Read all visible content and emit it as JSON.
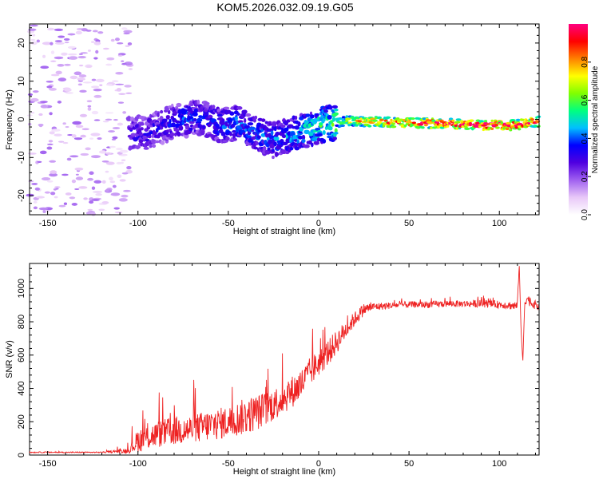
{
  "chart_data": [
    {
      "type": "heatmap",
      "title": "KOM5.2026.032.09.19.G05",
      "xlabel": "Height of straight line (km)",
      "ylabel": "Frequency (Hz)",
      "xlim": [
        -160,
        122
      ],
      "ylim": [
        -25,
        25
      ],
      "xticks": [
        -150,
        -100,
        -50,
        0,
        50,
        100
      ],
      "yticks": [
        -20,
        -10,
        0,
        10,
        20
      ],
      "colorbar": {
        "label": "Normalized spectral amplitude",
        "range": [
          0.0,
          1.0
        ],
        "ticks": [
          0.0,
          0.2,
          0.4,
          0.6,
          0.8
        ],
        "tick_labels": [
          "0.0",
          "0.2",
          "0.4",
          "0.6",
          "0.8"
        ],
        "colormap": [
          "#ffffff",
          "#e8c8f8",
          "#a060f0",
          "#5000e0",
          "#0000ff",
          "#00c0ff",
          "#00ff80",
          "#80ff00",
          "#ffff00",
          "#ff8000",
          "#ff0000",
          "#ff0080"
        ]
      },
      "ridge": {
        "x": [
          -105,
          -95,
          -85,
          -75,
          -65,
          -55,
          -45,
          -35,
          -25,
          -15,
          -5,
          5,
          15,
          30,
          50,
          70,
          90,
          110,
          122
        ],
        "freq": [
          -4,
          -3.5,
          -1.5,
          0,
          0.5,
          -1.5,
          -1,
          -3.5,
          -5.5,
          -4,
          -2.5,
          -1,
          -0.5,
          -0.5,
          -1,
          -1,
          -1.5,
          -1.5,
          -0.5
        ],
        "amplitude": [
          0.25,
          0.25,
          0.25,
          0.3,
          0.28,
          0.3,
          0.32,
          0.3,
          0.32,
          0.35,
          0.4,
          0.45,
          0.55,
          0.65,
          0.7,
          0.75,
          0.8,
          0.8,
          0.7
        ]
      },
      "noise_region_x": [
        -160,
        -110
      ]
    },
    {
      "type": "line",
      "title": "",
      "xlabel": "Height of straight line (km)",
      "ylabel": "SNR (v/v)",
      "xlim": [
        -160,
        122
      ],
      "ylim": [
        0,
        1150
      ],
      "xticks": [
        -150,
        -100,
        -50,
        0,
        50,
        100
      ],
      "yticks": [
        0,
        200,
        400,
        600,
        800,
        1000
      ],
      "color": "#ee2222",
      "series": [
        {
          "name": "SNR",
          "x": [
            -160,
            -120,
            -105,
            -100,
            -90,
            -80,
            -70,
            -60,
            -50,
            -40,
            -30,
            -20,
            -10,
            -5,
            0,
            5,
            10,
            15,
            20,
            25,
            30,
            40,
            50,
            60,
            70,
            80,
            90,
            100,
            105,
            110,
            111,
            112,
            113,
            114,
            115,
            118,
            122
          ],
          "y": [
            15,
            15,
            20,
            60,
            90,
            110,
            120,
            140,
            160,
            190,
            230,
            300,
            380,
            460,
            520,
            580,
            650,
            730,
            800,
            860,
            880,
            890,
            895,
            895,
            900,
            900,
            900,
            895,
            890,
            880,
            1150,
            750,
            560,
            900,
            930,
            900,
            880
          ],
          "spread": [
            4,
            4,
            20,
            90,
            100,
            110,
            110,
            120,
            120,
            140,
            130,
            120,
            120,
            110,
            100,
            100,
            90,
            70,
            55,
            45,
            30,
            25,
            25,
            25,
            25,
            25,
            28,
            28,
            30,
            40,
            0,
            0,
            0,
            40,
            40,
            35,
            30
          ]
        }
      ]
    }
  ]
}
